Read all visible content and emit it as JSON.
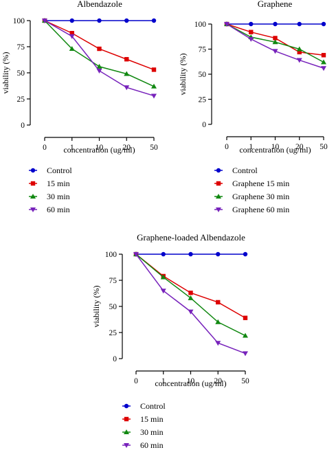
{
  "chart_data": [
    {
      "type": "line",
      "title": "Albendazole",
      "xlabel": "concentration (ug/ml)",
      "ylabel": "viability (%)",
      "categories": [
        "0",
        "1",
        "10",
        "20",
        "50"
      ],
      "ylim": [
        0,
        100
      ],
      "yticks": [
        0,
        25,
        50,
        75,
        100
      ],
      "grid": false,
      "legend_position": "bottom",
      "series": [
        {
          "name": "Control",
          "color": "#0000cc",
          "marker": "circle",
          "values": [
            100,
            100,
            100,
            100,
            100
          ]
        },
        {
          "name": "15 min",
          "color": "#dd0000",
          "marker": "square",
          "values": [
            100,
            88,
            73,
            63,
            53
          ]
        },
        {
          "name": "30 min",
          "color": "#118811",
          "marker": "triangle-up",
          "values": [
            100,
            73,
            56,
            49,
            37
          ]
        },
        {
          "name": "60 min",
          "color": "#7722bb",
          "marker": "triangle-down",
          "values": [
            100,
            85,
            52,
            36,
            28
          ]
        }
      ]
    },
    {
      "type": "line",
      "title": "Graphene",
      "xlabel": "concentration (ug/ml)",
      "ylabel": "viability (%)",
      "categories": [
        "0",
        "1",
        "10",
        "20",
        "50"
      ],
      "ylim": [
        0,
        100
      ],
      "yticks": [
        0,
        25,
        50,
        75,
        100
      ],
      "grid": false,
      "legend_position": "bottom",
      "series": [
        {
          "name": "Control",
          "color": "#0000cc",
          "marker": "circle",
          "values": [
            100,
            100,
            100,
            100,
            100
          ]
        },
        {
          "name": "Graphene 15 min",
          "color": "#dd0000",
          "marker": "square",
          "values": [
            100,
            92,
            86,
            72,
            69
          ]
        },
        {
          "name": "Graphene 30 min",
          "color": "#118811",
          "marker": "triangle-up",
          "values": [
            100,
            87,
            82,
            75,
            62
          ]
        },
        {
          "name": "Graphene 60 min",
          "color": "#7722bb",
          "marker": "triangle-down",
          "values": [
            100,
            85,
            73,
            64,
            56
          ]
        }
      ]
    },
    {
      "type": "line",
      "title": "Graphene-loaded Albendazole",
      "xlabel": "concentration (ug/ml)",
      "ylabel": "viability (%)",
      "categories": [
        "0",
        "1",
        "10",
        "20",
        "50"
      ],
      "ylim": [
        0,
        100
      ],
      "yticks": [
        0,
        25,
        50,
        75,
        100
      ],
      "grid": false,
      "legend_position": "bottom",
      "series": [
        {
          "name": "Control",
          "color": "#0000cc",
          "marker": "circle",
          "values": [
            100,
            100,
            100,
            100,
            100
          ]
        },
        {
          "name": "15 min",
          "color": "#dd0000",
          "marker": "square",
          "values": [
            100,
            79,
            63,
            54,
            39
          ]
        },
        {
          "name": "30 min",
          "color": "#118811",
          "marker": "triangle-up",
          "values": [
            100,
            78,
            58,
            35,
            22
          ]
        },
        {
          "name": "60 min",
          "color": "#7722bb",
          "marker": "triangle-down",
          "values": [
            100,
            65,
            45,
            15,
            5
          ]
        }
      ]
    }
  ]
}
